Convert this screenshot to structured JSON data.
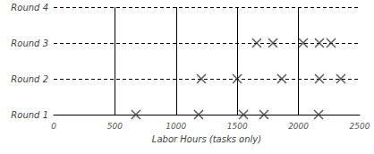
{
  "chart_data": {
    "type": "scatter",
    "categories": [
      "Round 1",
      "Round 2",
      "Round 3",
      "Round 4"
    ],
    "values": [
      [
        672,
        1184,
        1550,
        1718,
        2164
      ],
      [
        1206,
        1499,
        1864,
        2171,
        2346
      ],
      [
        1659,
        1791,
        2039,
        2171,
        2266
      ],
      []
    ],
    "xlabel": "Labor Hours (tasks only)",
    "xlim": [
      0,
      2500
    ],
    "xticks": [
      0,
      500,
      1000,
      1500,
      2000,
      2500
    ],
    "marker": "x",
    "color": "#333333",
    "grid": true
  }
}
